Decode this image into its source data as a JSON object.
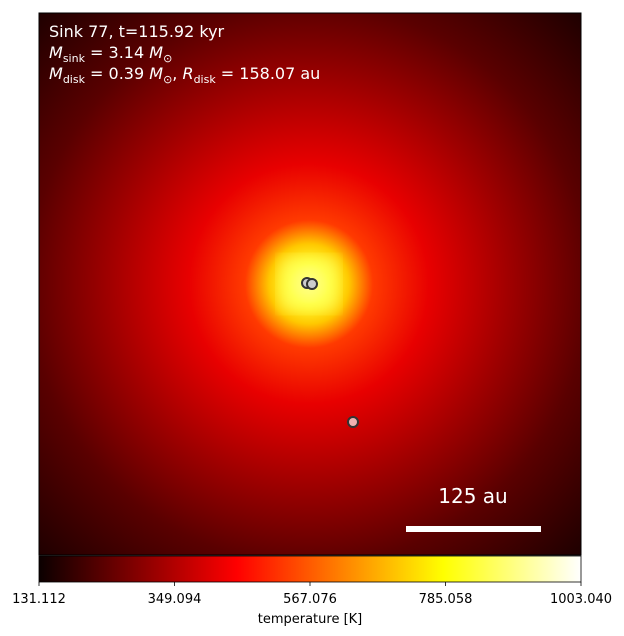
{
  "chart_data": {
    "type": "image",
    "annotation_lines": [
      [
        {
          "t": "Sink 77, t=115.92 kyr"
        }
      ],
      [
        {
          "t": "M",
          "italic": true
        },
        {
          "t": "sink",
          "sub": true
        },
        {
          "t": " = 3.14 "
        },
        {
          "t": "M",
          "italic": true
        },
        {
          "t": "⊙",
          "sub": true
        }
      ],
      [
        {
          "t": "M",
          "italic": true
        },
        {
          "t": "disk",
          "sub": true
        },
        {
          "t": " = 0.39 "
        },
        {
          "t": "M",
          "italic": true
        },
        {
          "t": "⊙",
          "sub": true
        },
        {
          "t": ", "
        },
        {
          "t": "R",
          "italic": true
        },
        {
          "t": "disk",
          "sub": true
        },
        {
          "t": " = 158.07 au"
        }
      ]
    ],
    "scale_bar_label": "125 au",
    "colorbar": {
      "label": "temperature [K]",
      "cmap": "hot",
      "clim": [
        131.112,
        1003.04
      ],
      "ticks": [
        131.112,
        349.094,
        567.076,
        785.058,
        {
          "value": 1003.04,
          "label": "1003.040"
        }
      ]
    }
  }
}
